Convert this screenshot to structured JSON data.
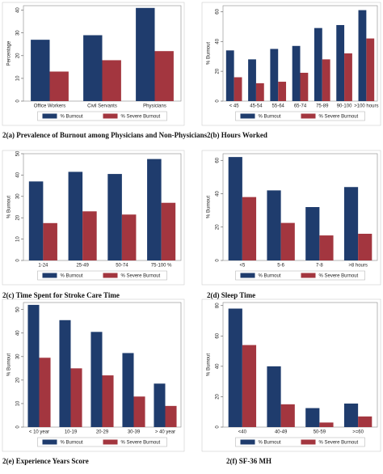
{
  "chart_data": [
    {
      "type": "bar",
      "title": "2(a) Prevalence of Burnout among Physicians and Non-Physicians",
      "ylabel": "Percentage",
      "categories": [
        "Office Workers",
        "Civil Servants",
        "Physicians"
      ],
      "series": [
        {
          "name": "% Burnout",
          "color": "#1f3c6d",
          "values": [
            27,
            29,
            41
          ]
        },
        {
          "name": "% Severe Burnout",
          "color": "#a3363f",
          "values": [
            13,
            18,
            22
          ]
        }
      ],
      "ylim": [
        0,
        42
      ],
      "yticks": [
        0,
        10,
        20,
        30,
        40
      ]
    },
    {
      "type": "bar",
      "title": "2(b) Hours Worked",
      "ylabel": "% Burnout",
      "categories": [
        "< 45",
        "45-54",
        "55-64",
        "65-74",
        "75-89",
        "90-100",
        ">100 hours"
      ],
      "series": [
        {
          "name": "% Burnout",
          "color": "#1f3c6d",
          "values": [
            34,
            28,
            35,
            37,
            49,
            51,
            61
          ]
        },
        {
          "name": "% Severe Burnout",
          "color": "#a3363f",
          "values": [
            16,
            12,
            13,
            19,
            28,
            32,
            42
          ]
        }
      ],
      "ylim": [
        0,
        64
      ],
      "yticks": [
        0,
        20,
        40,
        60
      ]
    },
    {
      "type": "bar",
      "title": "2(c) Time Spent for Stroke Care Time",
      "ylabel": "% Burnout",
      "categories": [
        "1-24",
        "25-49",
        "50-74",
        "75-100 %"
      ],
      "series": [
        {
          "name": "% Burnout",
          "color": "#1f3c6d",
          "values": [
            37,
            41.5,
            40.5,
            47.5
          ]
        },
        {
          "name": "% Severe Burnout",
          "color": "#a3363f",
          "values": [
            17.5,
            23,
            21.5,
            27
          ]
        }
      ],
      "ylim": [
        0,
        50
      ],
      "yticks": [
        0,
        10,
        20,
        30,
        40,
        50
      ]
    },
    {
      "type": "bar",
      "title": "2(d) Sleep Time",
      "ylabel": "% Burnout",
      "categories": [
        "<5",
        "5-6",
        "7-8",
        ">8 hours"
      ],
      "series": [
        {
          "name": "% Burnout",
          "color": "#1f3c6d",
          "values": [
            62,
            42,
            32,
            44
          ]
        },
        {
          "name": "% Severe Burnout",
          "color": "#a3363f",
          "values": [
            38,
            22.5,
            15,
            16
          ]
        }
      ],
      "ylim": [
        0,
        64
      ],
      "yticks": [
        0,
        20,
        40,
        60
      ]
    },
    {
      "type": "bar",
      "title": "2(e) Experience Years Score",
      "ylabel": "% Burnout",
      "categories": [
        "< 10 year",
        "10-19",
        "20-29",
        "30-39",
        "> 40 year"
      ],
      "series": [
        {
          "name": "% Burnout",
          "color": "#1f3c6d",
          "values": [
            52,
            45.5,
            40.5,
            31.5,
            18.5
          ]
        },
        {
          "name": "% Severe Burnout",
          "color": "#a3363f",
          "values": [
            29.5,
            25,
            22,
            13,
            9
          ]
        }
      ],
      "ylim": [
        0,
        53
      ],
      "yticks": [
        0,
        10,
        20,
        30,
        40,
        50
      ]
    },
    {
      "type": "bar",
      "title": "2(f) SF-36 MH",
      "ylabel": "% Burnout",
      "categories": [
        "<40",
        "40-49",
        "50-59",
        ">=60"
      ],
      "series": [
        {
          "name": "% Burnout",
          "color": "#1f3c6d",
          "values": [
            78,
            40,
            12.5,
            15.5
          ]
        },
        {
          "name": "% Severe Burnout",
          "color": "#a3363f",
          "values": [
            54,
            15,
            3,
            7
          ]
        }
      ],
      "ylim": [
        0,
        82
      ],
      "yticks": [
        0,
        20,
        40,
        60,
        80
      ]
    }
  ]
}
